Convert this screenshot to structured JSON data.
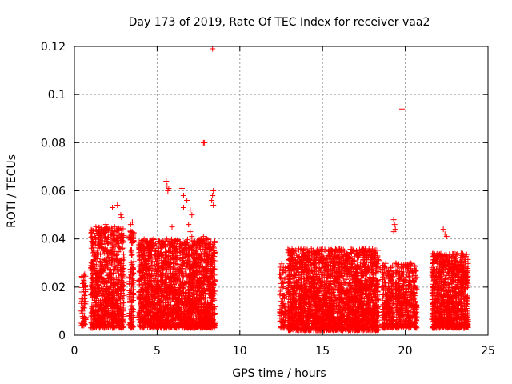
{
  "chart_data": {
    "type": "scatter",
    "title": "Day 173 of 2019, Rate Of TEC Index for receiver vaa2",
    "xlabel": "GPS time / hours",
    "ylabel": "ROTI / TECUs",
    "xlim": [
      0,
      25
    ],
    "ylim": [
      0,
      0.12
    ],
    "x_ticks": [
      0,
      5,
      10,
      15,
      20,
      25
    ],
    "x_tick_labels": [
      "0",
      "5",
      "10",
      "15",
      "20",
      "25"
    ],
    "y_ticks": [
      0,
      0.02,
      0.04,
      0.06,
      0.08,
      0.1,
      0.12
    ],
    "y_tick_labels": [
      "0",
      "0.02",
      "0.04",
      "0.06",
      "0.08",
      "0.1",
      "0.12"
    ],
    "grid": true,
    "marker": "+",
    "color": "#ff0000",
    "series": [
      {
        "name": "ROTI",
        "outliers": [
          [
            8.35,
            0.119
          ],
          [
            19.8,
            0.094
          ],
          [
            7.8,
            0.08
          ],
          [
            7.85,
            0.08
          ],
          [
            5.55,
            0.064
          ],
          [
            5.6,
            0.062
          ],
          [
            5.65,
            0.06
          ],
          [
            5.7,
            0.061
          ],
          [
            6.5,
            0.061
          ],
          [
            6.6,
            0.058
          ],
          [
            6.8,
            0.056
          ],
          [
            6.6,
            0.053
          ],
          [
            7.0,
            0.052
          ],
          [
            7.1,
            0.05
          ],
          [
            8.4,
            0.06
          ],
          [
            8.35,
            0.058
          ],
          [
            8.3,
            0.056
          ],
          [
            8.4,
            0.054
          ],
          [
            2.6,
            0.054
          ],
          [
            2.3,
            0.053
          ],
          [
            3.5,
            0.047
          ],
          [
            3.4,
            0.046
          ],
          [
            2.8,
            0.05
          ],
          [
            2.85,
            0.049
          ],
          [
            19.3,
            0.048
          ],
          [
            19.35,
            0.046
          ],
          [
            19.4,
            0.044
          ],
          [
            19.3,
            0.043
          ],
          [
            22.3,
            0.044
          ],
          [
            22.4,
            0.042
          ],
          [
            22.5,
            0.041
          ],
          [
            6.9,
            0.046
          ],
          [
            7.0,
            0.043
          ],
          [
            7.1,
            0.041
          ],
          [
            5.9,
            0.045
          ],
          [
            7.8,
            0.041
          ],
          [
            8.0,
            0.04
          ],
          [
            1.3,
            0.045
          ],
          [
            1.4,
            0.043
          ],
          [
            1.9,
            0.046
          ],
          [
            2.0,
            0.044
          ]
        ],
        "clusters": [
          {
            "x_start": 0.4,
            "x_end": 0.7,
            "y_low": 0.004,
            "y_high": 0.026,
            "count": 60
          },
          {
            "x_start": 1.0,
            "x_end": 3.0,
            "y_low": 0.003,
            "y_high": 0.045,
            "count": 900
          },
          {
            "x_start": 3.3,
            "x_end": 3.6,
            "y_low": 0.003,
            "y_high": 0.045,
            "count": 120
          },
          {
            "x_start": 3.9,
            "x_end": 8.5,
            "y_low": 0.003,
            "y_high": 0.04,
            "count": 2200
          },
          {
            "x_start": 12.4,
            "x_end": 12.8,
            "y_low": 0.003,
            "y_high": 0.03,
            "count": 90
          },
          {
            "x_start": 12.9,
            "x_end": 18.4,
            "y_low": 0.002,
            "y_high": 0.036,
            "count": 2600
          },
          {
            "x_start": 18.6,
            "x_end": 19.3,
            "y_low": 0.003,
            "y_high": 0.03,
            "count": 240
          },
          {
            "x_start": 19.4,
            "x_end": 20.7,
            "y_low": 0.003,
            "y_high": 0.03,
            "count": 420
          },
          {
            "x_start": 21.6,
            "x_end": 23.8,
            "y_low": 0.003,
            "y_high": 0.034,
            "count": 1000
          }
        ]
      }
    ]
  }
}
